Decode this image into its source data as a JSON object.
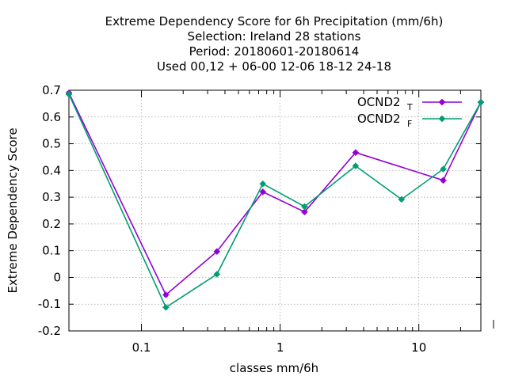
{
  "chart_data": {
    "type": "line",
    "title_lines": [
      "Extreme Dependency Score  for 6h Precipitation (mm/6h)",
      "Selection: Ireland     28 stations",
      "Period: 20180601-20180614",
      "Used  00,12  + 06-00 12-06 18-12 24-18"
    ],
    "xlabel": "classes mm/6h",
    "ylabel": "Extreme Dependency Score",
    "x_scale": "log",
    "xlim": [
      0.03,
      28
    ],
    "ylim": [
      -0.2,
      0.7
    ],
    "grid": true,
    "legend_position": "top-right",
    "x_ticks": [
      {
        "value": 0.1,
        "label": "0.1"
      },
      {
        "value": 1,
        "label": "1"
      },
      {
        "value": 10,
        "label": "10"
      }
    ],
    "y_ticks": [
      {
        "value": 0.7,
        "label": "0.7"
      },
      {
        "value": 0.6,
        "label": "0.6"
      },
      {
        "value": 0.5,
        "label": "0.5"
      },
      {
        "value": 0.4,
        "label": "0.4"
      },
      {
        "value": 0.3,
        "label": "0.3"
      },
      {
        "value": 0.2,
        "label": "0.2"
      },
      {
        "value": 0.1,
        "label": "0.1"
      },
      {
        "value": 0,
        "label": "0"
      },
      {
        "value": -0.1,
        "label": "-0.1"
      },
      {
        "value": -0.2,
        "label": "-0.2"
      }
    ],
    "series": [
      {
        "name": "OCND2",
        "subscript": "T",
        "color": "#9400d3",
        "points": [
          {
            "x": 0.03,
            "y": 0.69
          },
          {
            "x": 0.15,
            "y": -0.065
          },
          {
            "x": 0.35,
            "y": 0.097
          },
          {
            "x": 0.75,
            "y": 0.32
          },
          {
            "x": 1.5,
            "y": 0.245
          },
          {
            "x": 3.5,
            "y": 0.467
          },
          {
            "x": 15,
            "y": 0.363
          },
          {
            "x": 28,
            "y": 0.655
          }
        ]
      },
      {
        "name": "OCND2",
        "subscript": "F",
        "color": "#009e73",
        "points": [
          {
            "x": 0.03,
            "y": 0.685
          },
          {
            "x": 0.15,
            "y": -0.112
          },
          {
            "x": 0.35,
            "y": 0.012
          },
          {
            "x": 0.75,
            "y": 0.35
          },
          {
            "x": 1.5,
            "y": 0.265
          },
          {
            "x": 3.5,
            "y": 0.417
          },
          {
            "x": 7.5,
            "y": 0.292
          },
          {
            "x": 15,
            "y": 0.405
          },
          {
            "x": 28,
            "y": 0.655
          }
        ]
      }
    ]
  }
}
